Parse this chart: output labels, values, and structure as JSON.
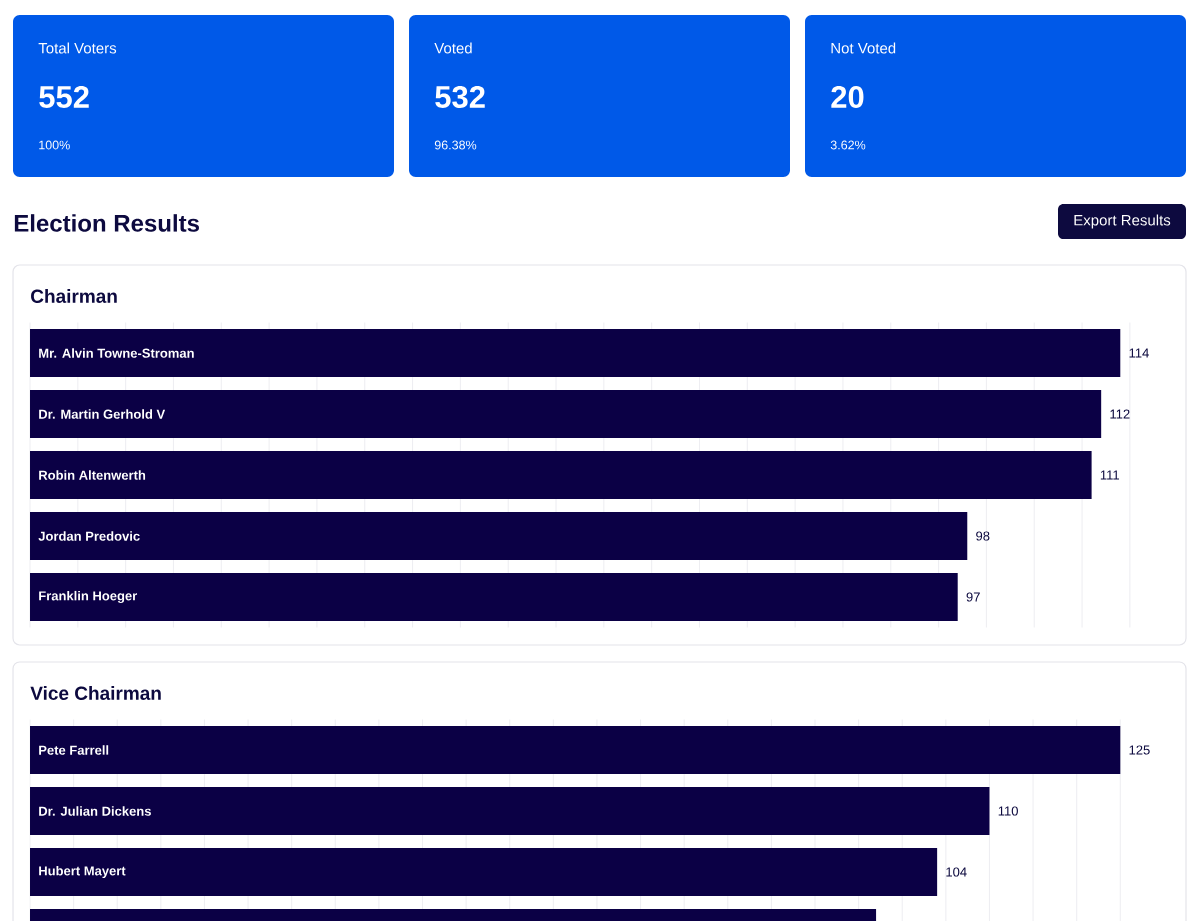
{
  "chart_data": [
    {
      "type": "other",
      "annotations": [
        "Total Voters",
        "552",
        "100%",
        "Voted",
        "532",
        "96.38%",
        "Not Voted",
        "20",
        "3.62%",
        "Election Results",
        "Export Results"
      ]
    },
    {
      "type": "bar",
      "orientation": "horizontal",
      "title": "Chairman",
      "categories": [
        "Mr. Alvin Towne-Stroman",
        "Dr. Martin Gerhold V",
        "Robin Altenwerth",
        "Jordan Predovic",
        "Franklin Hoeger"
      ],
      "values": [
        114,
        112,
        111,
        98,
        97
      ],
      "color": "#0b0045",
      "data_labels": true,
      "tick_labels": false,
      "grid": "x"
    },
    {
      "type": "bar",
      "orientation": "horizontal",
      "title": "Vice Chairman",
      "categories": [
        "Pete Farrell",
        "Dr. Julian Dickens",
        "Hubert Mayert",
        null
      ],
      "values": [
        125,
        110,
        104,
        97
      ],
      "value_labels": [
        "125",
        "110",
        "104",
        null
      ],
      "color": "#0b0045",
      "tick_labels": false,
      "grid": "x"
    }
  ]
}
